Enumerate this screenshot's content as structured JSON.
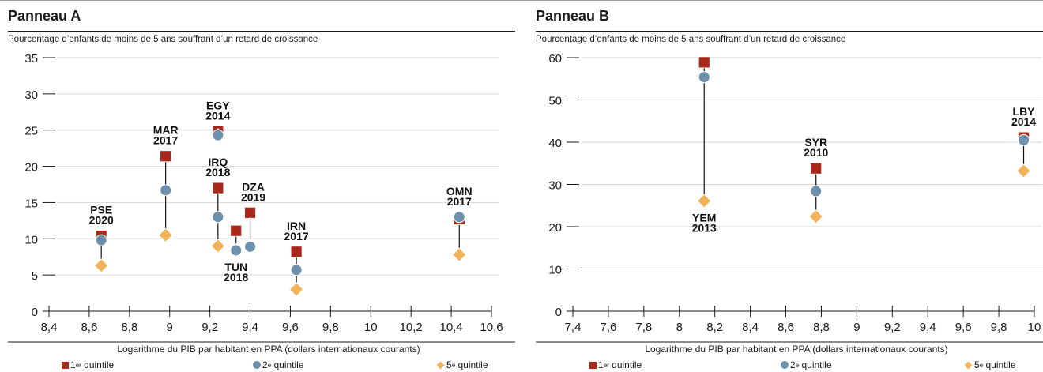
{
  "colors": {
    "q1": "#a8281c",
    "q2": "#6d91ad",
    "q5": "#f2b25a",
    "axis": "#1a1a1a",
    "grid": "#d6d6d6"
  },
  "legend": {
    "q1": {
      "num": "1",
      "sup": "er",
      "label": " quintile"
    },
    "q2": {
      "num": "2",
      "sup": "e",
      "label": " quintile"
    },
    "q5": {
      "num": "5",
      "sup": "e",
      "label": " quintile"
    }
  },
  "chart_data": [
    {
      "type": "scatter",
      "title": "Panneau A",
      "ylabel": "Pourcentage d’enfants de moins de 5 ans souffrant d’un retard de croissance",
      "xlabel": "Logarithme du PIB par habitant en PPA (dollars internationaux courants)",
      "xlim": [
        8.4,
        10.6
      ],
      "ylim": [
        0,
        35
      ],
      "xticks": [
        8.4,
        8.6,
        8.8,
        9.0,
        9.2,
        9.4,
        9.6,
        9.8,
        10.0,
        10.2,
        10.4,
        10.6
      ],
      "xtick_labels": [
        "8,4",
        "8,6",
        "8,8",
        "9",
        "9,2",
        "9,4",
        "9,6",
        "9,8",
        "10",
        "10,2",
        "10,4",
        "10,6"
      ],
      "yticks": [
        0,
        5,
        10,
        15,
        20,
        25,
        30,
        35
      ],
      "grid": "horizontal",
      "series_names": [
        "1er quintile",
        "2e quintile",
        "5e quintile"
      ],
      "points": [
        {
          "code": "PSE",
          "year": "2020",
          "x": 8.66,
          "q1": 10.4,
          "q2": 9.8,
          "q5": 6.3,
          "label_pos": "above"
        },
        {
          "code": "MAR",
          "year": "2017",
          "x": 8.98,
          "q1": 21.4,
          "q2": 16.7,
          "q5": 10.5,
          "label_pos": "above"
        },
        {
          "code": "EGY",
          "year": "2014",
          "x": 9.24,
          "q1": 24.8,
          "q2": 24.3,
          "q5": 24.3,
          "label_pos": "above"
        },
        {
          "code": "IRQ",
          "year": "2018",
          "x": 9.24,
          "q1": 17.0,
          "q2": 13.0,
          "q5": 9.0,
          "label_pos": "above"
        },
        {
          "code": "TUN",
          "year": "2018",
          "x": 9.33,
          "q1": 11.1,
          "q2": 8.4,
          "q5": 8.4,
          "label_pos": "below"
        },
        {
          "code": "DZA",
          "year": "2019",
          "x": 9.4,
          "q1": 13.6,
          "q2": 8.9,
          "q5": 8.9,
          "label_pos": "above"
        },
        {
          "code": "IRN",
          "year": "2017",
          "x": 9.63,
          "q1": 8.2,
          "q2": 5.7,
          "q5": 3.0,
          "label_pos": "above"
        },
        {
          "code": "OMN",
          "year": "2017",
          "x": 10.44,
          "q1": 12.7,
          "q2": 13.0,
          "q5": 7.8,
          "label_pos": "above"
        }
      ]
    },
    {
      "type": "scatter",
      "title": "Panneau B",
      "ylabel": "Pourcentage d’enfants de moins de 5 ans souffrant d’un retard de croissance",
      "xlabel": "Logarithme du PIB par habitant en PPA (dollars internationaux courants)",
      "xlim": [
        7.4,
        10.0
      ],
      "ylim": [
        0,
        60
      ],
      "xticks": [
        7.4,
        7.6,
        7.8,
        8.0,
        8.2,
        8.4,
        8.6,
        8.8,
        9.0,
        9.2,
        9.4,
        9.6,
        9.8,
        10.0
      ],
      "xtick_labels": [
        "7,4",
        "7,6",
        "7,8",
        "8",
        "8,2",
        "8,4",
        "8,6",
        "8,8",
        "9",
        "9,2",
        "9,4",
        "9,6",
        "9,8",
        "10"
      ],
      "yticks": [
        0,
        10,
        20,
        30,
        40,
        50,
        60
      ],
      "grid": "horizontal",
      "series_names": [
        "1er quintile",
        "2e quintile",
        "5e quintile"
      ],
      "points": [
        {
          "code": "YEM",
          "year": "2013",
          "x": 8.14,
          "q1": 58.9,
          "q2": 55.4,
          "q5": 26.1,
          "label_pos": "below"
        },
        {
          "code": "SYR",
          "year": "2010",
          "x": 8.77,
          "q1": 33.8,
          "q2": 28.4,
          "q5": 22.4,
          "label_pos": "above"
        },
        {
          "code": "LBY",
          "year": "2014",
          "x": 9.94,
          "q1": 41.1,
          "q2": 40.5,
          "q5": 33.2,
          "label_pos": "above"
        }
      ]
    }
  ]
}
